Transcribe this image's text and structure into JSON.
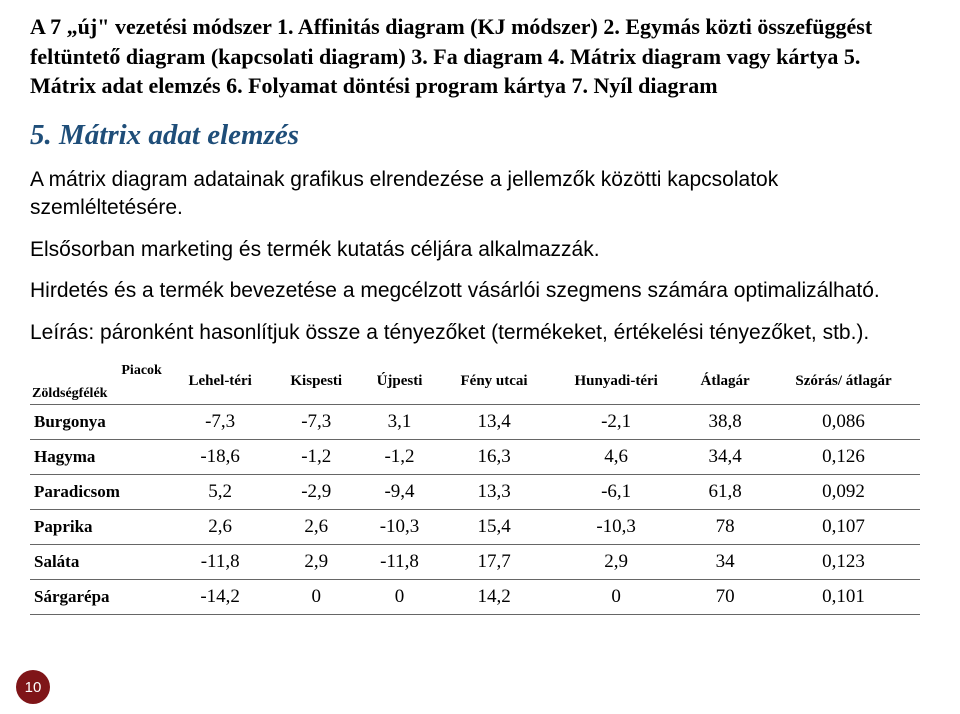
{
  "intro": "A 7 „új\" vezetési módszer 1. Affinitás diagram (KJ módszer) 2. Egymás közti összefüggést feltüntető diagram (kapcsolati diagram) 3. Fa diagram 4. Mátrix diagram vagy kártya 5. Mátrix adat elemzés 6. Folyamat döntési program kártya 7. Nyíl diagram",
  "heading": "5. Mátrix adat elemzés",
  "p1": "A mátrix diagram adatainak grafikus elrendezése a jellemzők közötti kapcsolatok szemléltetésére.",
  "p2": "Elsősorban marketing és termék kutatás céljára alkalmazzák.",
  "p3": "Hirdetés és a termék bevezetése a megcélzott vásárlói szegmens számára optimalizálható.",
  "p4": "Leírás: páronként hasonlítjuk össze a tényezőket (termékeket, értékelési tényezőket, stb.).",
  "table": {
    "corner_top": "Piacok",
    "corner_bottom": "Zöldségfélék",
    "columns": [
      "Lehel-téri",
      "Kispesti",
      "Újpesti",
      "Fény utcai",
      "Hunyadi-téri",
      "Átlagár",
      "Szórás/ átlagár"
    ],
    "rows": [
      {
        "label": "Burgonya",
        "cells": [
          "-7,3",
          "-7,3",
          "3,1",
          "13,4",
          "-2,1",
          "38,8",
          "0,086"
        ]
      },
      {
        "label": "Hagyma",
        "cells": [
          "-18,6",
          "-1,2",
          "-1,2",
          "16,3",
          "4,6",
          "34,4",
          "0,126"
        ]
      },
      {
        "label": "Paradicsom",
        "cells": [
          "5,2",
          "-2,9",
          "-9,4",
          "13,3",
          "-6,1",
          "61,8",
          "0,092"
        ]
      },
      {
        "label": "Paprika",
        "cells": [
          "2,6",
          "2,6",
          "-10,3",
          "15,4",
          "-10,3",
          "78",
          "0,107"
        ]
      },
      {
        "label": "Saláta",
        "cells": [
          "-11,8",
          "2,9",
          "-11,8",
          "17,7",
          "2,9",
          "34",
          "0,123"
        ]
      },
      {
        "label": "Sárgarépa",
        "cells": [
          "-14,2",
          "0",
          "0",
          "14,2",
          "0",
          "70",
          "0,101"
        ]
      }
    ]
  },
  "page_number": "10",
  "colors": {
    "heading": "#1f4e79",
    "badge_bg": "#7f1518",
    "border": "#666666",
    "text": "#000000",
    "bg": "#ffffff"
  }
}
